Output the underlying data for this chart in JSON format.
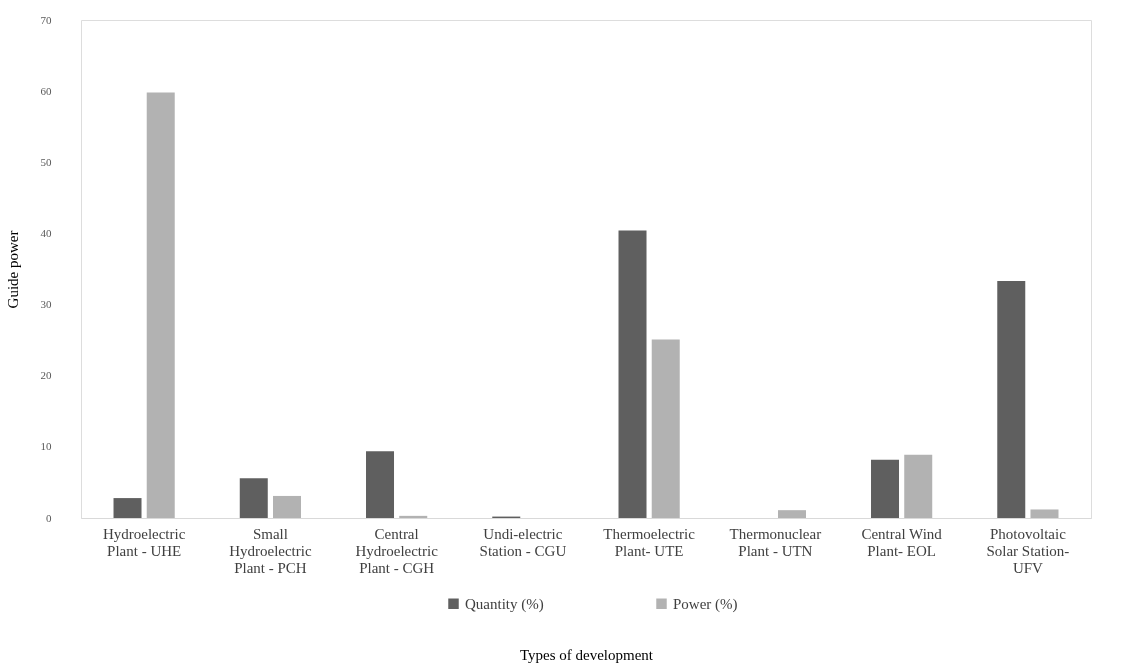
{
  "chart_data": {
    "type": "bar",
    "xlabel": "Types of development",
    "ylabel": "Guide power",
    "categories": [
      "Hydroelectric Plant - UHE",
      "Small Hydroelectric Plant  - PCH",
      "Central Hydroelectric Plant - CGH",
      "Undi-electric Station - CGU",
      "Thermoelectric Plant- UTE",
      "Thermonuclear Plant - UTN",
      "Central Wind Plant- EOL",
      "Photovoltaic Solar Station- UFV"
    ],
    "series": [
      {
        "name": "Quantity (%)",
        "color": "#5f5f5f",
        "values": [
          2.8,
          5.6,
          9.4,
          0.2,
          40.4,
          0,
          8.2,
          33.3
        ]
      },
      {
        "name": "Power (%)",
        "color": "#b2b2b2",
        "values": [
          59.8,
          3.1,
          0.3,
          0,
          25.1,
          1.1,
          8.9,
          1.2
        ]
      }
    ],
    "ylim": [
      0,
      70
    ],
    "yticks": [
      0,
      10,
      20,
      30,
      40,
      50,
      60,
      70
    ],
    "grid": false,
    "legend": "bottom"
  }
}
